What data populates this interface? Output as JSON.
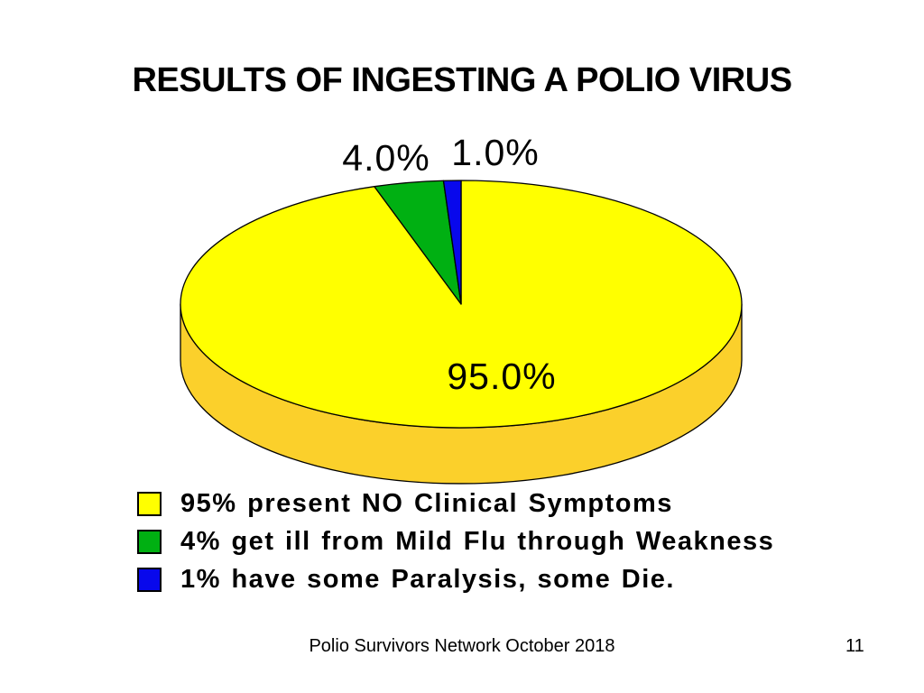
{
  "slide": {
    "title": "RESULTS OF INGESTING A POLIO VIRUS",
    "footer": {
      "text": "Polio Survivors Network October 2018",
      "page_number": "11"
    }
  },
  "chart_data": {
    "type": "pie",
    "style": "3d",
    "title": "RESULTS OF INGESTING A POLIO VIRUS",
    "start_angle_deg": 90,
    "direction": "clockwise",
    "background_color": "#FFFFFF",
    "outline_color": "#000000",
    "side_color": "#FBD02B",
    "legend_position": "bottom-left",
    "slices": [
      {
        "label": "95.0%",
        "value": 95.0,
        "color": "#FFFF00",
        "legend": "95% present NO Clinical Symptoms"
      },
      {
        "label": "4.0%",
        "value": 4.0,
        "color": "#00B012",
        "legend": "4% get ill from Mild Flu through Weakness"
      },
      {
        "label": "1.0%",
        "value": 1.0,
        "color": "#0808EC",
        "legend": "1% have some Paralysis, some Die."
      }
    ]
  }
}
